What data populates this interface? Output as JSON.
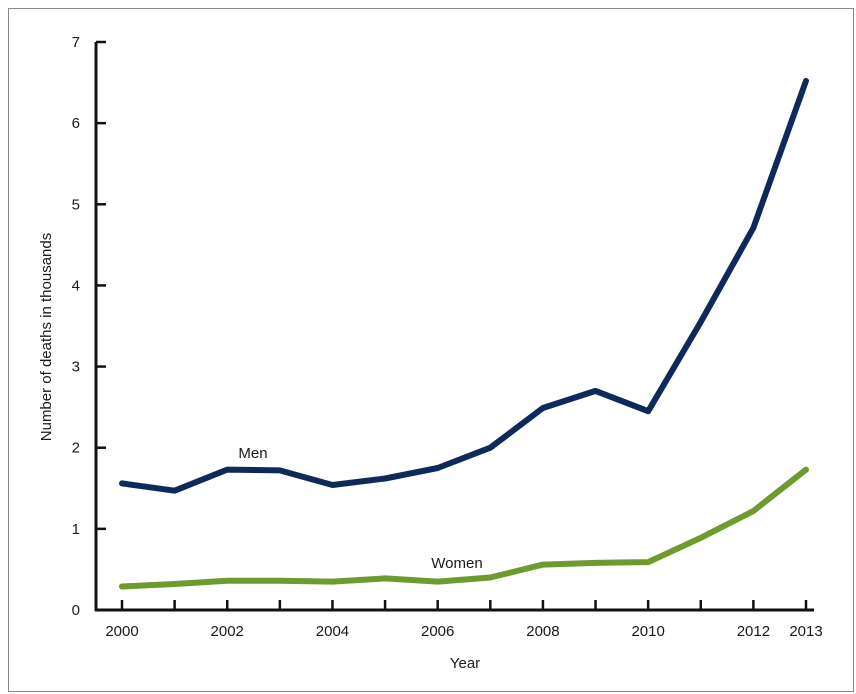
{
  "chart_data": {
    "type": "line",
    "title": "",
    "xlabel": "Year",
    "ylabel": "Number of deaths in thousands",
    "x": [
      2000,
      2001,
      2002,
      2003,
      2004,
      2005,
      2006,
      2007,
      2008,
      2009,
      2010,
      2011,
      2012,
      2013
    ],
    "x_tick_labels": [
      "2000",
      "2002",
      "2004",
      "2006",
      "2008",
      "2010",
      "2012",
      "2013"
    ],
    "y_tick_labels": [
      "0",
      "1",
      "2",
      "3",
      "4",
      "5",
      "6",
      "7"
    ],
    "xlim": [
      2000,
      2013
    ],
    "ylim": [
      0,
      7
    ],
    "grid": false,
    "series": [
      {
        "name": "Men",
        "color": "#0f2a5a",
        "values": [
          1.56,
          1.47,
          1.73,
          1.72,
          1.54,
          1.62,
          1.75,
          2.0,
          2.49,
          2.7,
          2.45,
          3.55,
          4.71,
          6.52
        ]
      },
      {
        "name": "Women",
        "color": "#6e9a2e",
        "values": [
          0.29,
          0.32,
          0.36,
          0.36,
          0.35,
          0.39,
          0.35,
          0.4,
          0.56,
          0.58,
          0.59,
          0.89,
          1.22,
          1.73
        ]
      }
    ]
  }
}
